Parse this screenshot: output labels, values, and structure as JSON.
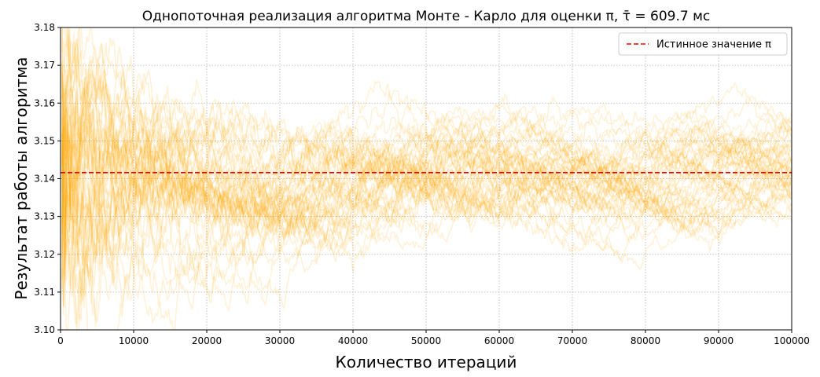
{
  "chart_data": {
    "type": "line",
    "title": "Однопоточная реализация алгоритма Монте - Карло для оценки π, τ̄ = 609.7 мс",
    "xlabel": "Количество итераций",
    "ylabel": "Результат работы алгоритма",
    "xlim": [
      0,
      100000
    ],
    "ylim": [
      3.1,
      3.18
    ],
    "x_ticks": [
      "0",
      "10000",
      "20000",
      "30000",
      "40000",
      "50000",
      "60000",
      "70000",
      "80000",
      "90000",
      "100000"
    ],
    "y_ticks": [
      "3.10",
      "3.11",
      "3.12",
      "3.13",
      "3.14",
      "3.15",
      "3.16",
      "3.17",
      "3.18"
    ],
    "grid": true,
    "legend_position": "top-right",
    "reference_line": {
      "name": "Истинное значение π",
      "value": 3.14159,
      "color": "#ff0000",
      "style": "dashed"
    },
    "simulation_runs": {
      "count": 50,
      "color": "#ffa500",
      "opacity": 0.15,
      "final_value_range": [
        3.133,
        3.155
      ]
    }
  }
}
